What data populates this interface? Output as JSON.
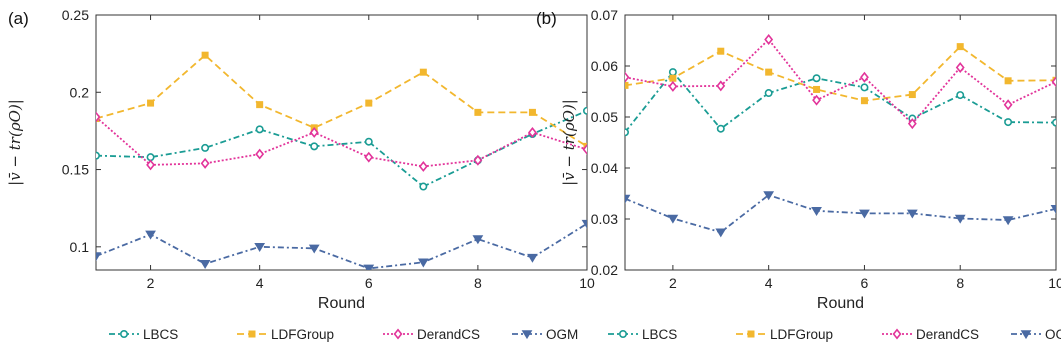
{
  "chart_data": [
    {
      "type": "line",
      "panel_label": "(a)",
      "xlabel": "Round",
      "ylabel": "|v̄ − tr(ρO)|",
      "xlim": [
        1,
        10
      ],
      "ylim": [
        0.085,
        0.25
      ],
      "x_ticks": [
        2,
        4,
        6,
        8,
        10
      ],
      "y_ticks": [
        0.1,
        0.15,
        0.2,
        0.25
      ],
      "y_tick_labels": [
        "0.1",
        "0.15",
        "0.2",
        "0.25"
      ],
      "x": [
        1,
        2,
        3,
        4,
        5,
        6,
        7,
        8,
        9,
        10
      ],
      "grid": false,
      "series": [
        {
          "name": "LBCS",
          "color": "#1a9c94",
          "dash": "6,3,2,3",
          "marker": "circle",
          "values": [
            0.159,
            0.158,
            0.164,
            0.176,
            0.165,
            0.168,
            0.139,
            0.156,
            0.173,
            0.188
          ]
        },
        {
          "name": "LDFGroup",
          "color": "#f2b72e",
          "dash": "7,4",
          "marker": "square",
          "values": [
            0.183,
            0.193,
            0.224,
            0.192,
            0.177,
            0.193,
            0.213,
            0.187,
            0.187,
            0.165
          ]
        },
        {
          "name": "DerandCS",
          "color": "#e2349a",
          "dash": "2,2",
          "marker": "diamond",
          "values": [
            0.184,
            0.153,
            0.154,
            0.16,
            0.174,
            0.158,
            0.152,
            0.156,
            0.174,
            0.163
          ]
        },
        {
          "name": "OGM",
          "color": "#4a6aa3",
          "dash": "6,3,2,3",
          "marker": "triangle",
          "values": [
            0.094,
            0.108,
            0.089,
            0.1,
            0.099,
            0.086,
            0.09,
            0.105,
            0.093,
            0.115
          ]
        }
      ]
    },
    {
      "type": "line",
      "panel_label": "(b)",
      "xlabel": "Round",
      "ylabel": "|v̄ − tr(ρO)|",
      "xlim": [
        1,
        10
      ],
      "ylim": [
        0.02,
        0.07
      ],
      "x_ticks": [
        2,
        4,
        6,
        8,
        10
      ],
      "y_ticks": [
        0.02,
        0.03,
        0.04,
        0.05,
        0.06,
        0.07
      ],
      "y_tick_labels": [
        "0.02",
        "0.03",
        "0.04",
        "0.05",
        "0.06",
        "0.07"
      ],
      "x": [
        1,
        2,
        3,
        4,
        5,
        6,
        7,
        8,
        9,
        10
      ],
      "grid": false,
      "series": [
        {
          "name": "LBCS",
          "color": "#1a9c94",
          "dash": "6,3,2,3",
          "marker": "circle",
          "values": [
            0.047,
            0.0588,
            0.0477,
            0.0547,
            0.0576,
            0.0558,
            0.0497,
            0.0543,
            0.049,
            0.0489
          ]
        },
        {
          "name": "LDFGroup",
          "color": "#f2b72e",
          "dash": "7,4",
          "marker": "square",
          "values": [
            0.0562,
            0.0576,
            0.0629,
            0.0588,
            0.0554,
            0.0532,
            0.0544,
            0.0638,
            0.0571,
            0.0572
          ]
        },
        {
          "name": "DerandCS",
          "color": "#e2349a",
          "dash": "2,2",
          "marker": "diamond",
          "values": [
            0.0578,
            0.056,
            0.0561,
            0.0652,
            0.0533,
            0.0578,
            0.0487,
            0.0597,
            0.0524,
            0.0569
          ]
        },
        {
          "name": "OGM",
          "color": "#4a6aa3",
          "dash": "6,3,2,3",
          "marker": "triangle",
          "values": [
            0.034,
            0.0301,
            0.0274,
            0.0347,
            0.0316,
            0.0311,
            0.0311,
            0.0301,
            0.0298,
            0.032
          ]
        }
      ]
    }
  ]
}
